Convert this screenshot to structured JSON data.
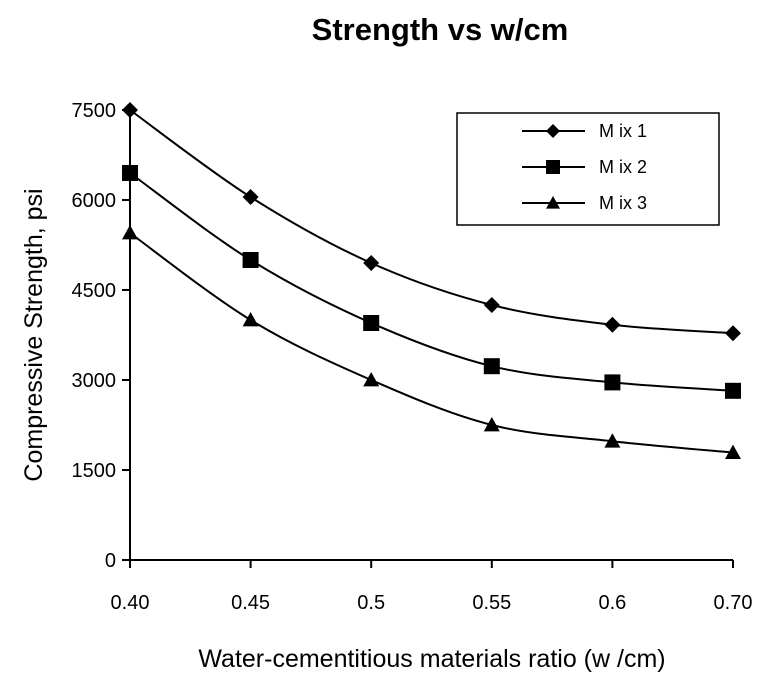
{
  "chart_data": {
    "type": "line",
    "title": "Strength vs w/cm",
    "xlabel": "Water-cementitious materials ratio (w /cm)",
    "ylabel": "Compressive Strength, psi",
    "categories": [
      "0.40",
      "0.45",
      "0.5",
      "0.55",
      "0.6",
      "0.70"
    ],
    "ylim": [
      0,
      7500
    ],
    "yticks": [
      "0",
      "1500",
      "3000",
      "4500",
      "6000",
      "7500"
    ],
    "grid": false,
    "legend_position": "top-right",
    "series": [
      {
        "name": "M ix 1",
        "marker": "diamond",
        "values": [
          7500,
          6050,
          4950,
          4250,
          3920,
          3780
        ]
      },
      {
        "name": "M ix 2",
        "marker": "square",
        "values": [
          6450,
          5000,
          3950,
          3230,
          2960,
          2820
        ]
      },
      {
        "name": "M ix 3",
        "marker": "triangle",
        "values": [
          5450,
          4000,
          3000,
          2250,
          1980,
          1790
        ]
      }
    ],
    "colors": {
      "line": "#000000",
      "marker": "#000000",
      "background": "#ffffff"
    }
  }
}
